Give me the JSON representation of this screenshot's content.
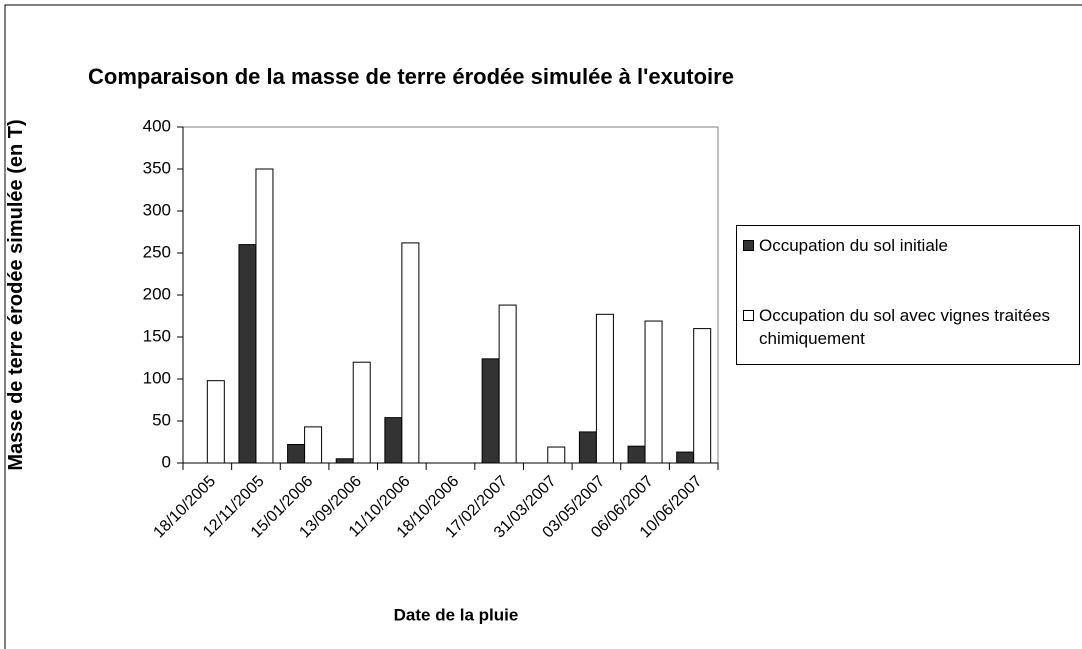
{
  "chart_data": {
    "type": "bar",
    "title": "Comparaison de la masse de terre érodée simulée à l'exutoire",
    "x_label": "Date de la pluie",
    "y_label": "Masse de terre érodée simulée (en T)",
    "categories": [
      "18/10/2005",
      "12/11/2005",
      "15/01/2006",
      "13/09/2006",
      "11/10/2006",
      "18/10/2006",
      "17/02/2007",
      "31/03/2007",
      "03/05/2007",
      "06/06/2007",
      "10/06/2007"
    ],
    "series": [
      {
        "name": "Occupation du sol initiale",
        "color": "#333333",
        "values": [
          0,
          260,
          22,
          5,
          54,
          0,
          124,
          0,
          37,
          20,
          13
        ]
      },
      {
        "name": "Occupation du sol avec vignes traitées chimiquement",
        "color": "#ffffff",
        "values": [
          98,
          350,
          43,
          120,
          262,
          0,
          188,
          19,
          177,
          169,
          160
        ]
      }
    ],
    "ylim": [
      0,
      400
    ],
    "yticks": [
      0,
      50,
      100,
      150,
      200,
      250,
      300,
      350,
      400
    ],
    "legend": "right"
  }
}
